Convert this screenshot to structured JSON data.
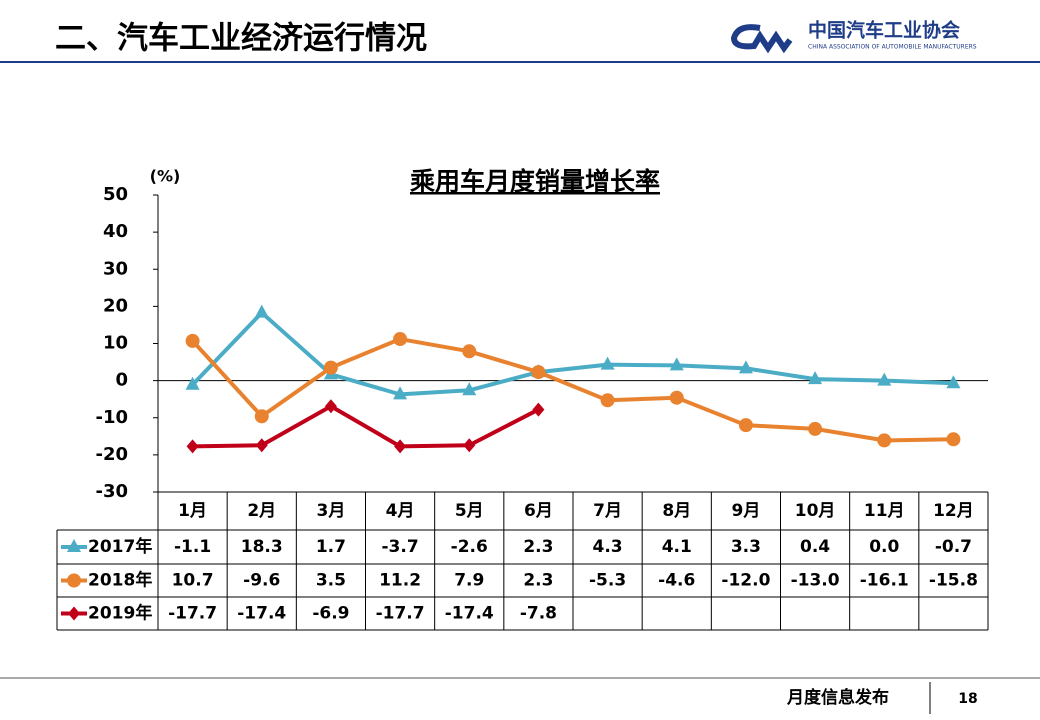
{
  "header": {
    "title": "二、汽车工业经济运行情况",
    "org_name": "中国汽车工业协会",
    "org_name_en": "CHINA ASSOCIATION OF AUTOMOBILE MANUFACTURERS"
  },
  "chart_data": {
    "type": "line",
    "title": "乘用车月度销量增长率",
    "y_label": "(%)",
    "categories": [
      "1月",
      "2月",
      "3月",
      "4月",
      "5月",
      "6月",
      "7月",
      "8月",
      "9月",
      "10月",
      "11月",
      "12月"
    ],
    "ylim": [
      -30,
      50
    ],
    "yticks": [
      -30,
      -20,
      -10,
      0,
      10,
      20,
      30,
      40,
      50
    ],
    "grid": false,
    "series": [
      {
        "name": "2017年",
        "color": "#4bacc6",
        "marker": "triangle",
        "values": [
          -1.1,
          18.3,
          1.7,
          -3.7,
          -2.6,
          2.3,
          4.3,
          4.1,
          3.3,
          0.4,
          0.0,
          -0.7
        ],
        "value_labels": [
          "-1.1",
          "18.3",
          "1.7",
          "-3.7",
          "-2.6",
          "2.3",
          "4.3",
          "4.1",
          "3.3",
          "0.4",
          "0.0",
          "-0.7"
        ]
      },
      {
        "name": "2018年",
        "color": "#e8822f",
        "marker": "circle",
        "values": [
          10.7,
          -9.6,
          3.5,
          11.2,
          7.9,
          2.3,
          -5.3,
          -4.6,
          -12.0,
          -13.0,
          -16.1,
          -15.8
        ],
        "value_labels": [
          "10.7",
          "-9.6",
          "3.5",
          "11.2",
          "7.9",
          "2.3",
          "-5.3",
          "-4.6",
          "-12.0",
          "-13.0",
          "-16.1",
          "-15.8"
        ]
      },
      {
        "name": "2019年",
        "color": "#c00018",
        "marker": "diamond",
        "values": [
          -17.7,
          -17.4,
          -6.9,
          -17.7,
          -17.4,
          -7.8,
          null,
          null,
          null,
          null,
          null,
          null
        ],
        "value_labels": [
          "-17.7",
          "-17.4",
          "-6.9",
          "-17.7",
          "-17.4",
          "-7.8",
          null,
          null,
          null,
          null,
          null,
          null
        ]
      }
    ]
  },
  "footer": {
    "text": "月度信息发布",
    "page": "18"
  }
}
